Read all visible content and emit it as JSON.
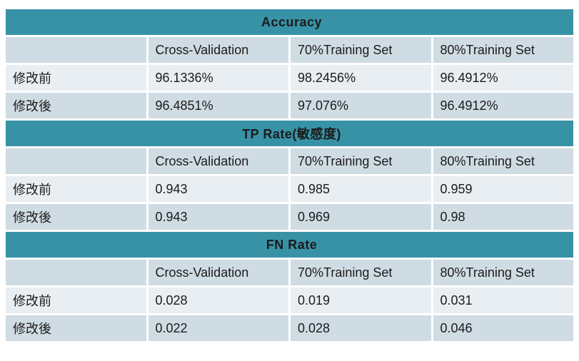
{
  "colors": {
    "accent_teal": "#3892a6",
    "row_shaded": "#d0dce3",
    "row_light": "#e9eef2",
    "title_text": "#ffffff",
    "body_text": "#1b1b1b",
    "background": "#ffffff"
  },
  "chart_data": [
    {
      "type": "table",
      "title": "Accuracy",
      "columns": [
        "",
        "Cross-Validation",
        "70%Training Set",
        "80%Training Set"
      ],
      "rows": [
        {
          "label": "修改前",
          "values": [
            "96.1336%",
            "98.2456%",
            "96.4912%"
          ]
        },
        {
          "label": "修改後",
          "values": [
            "96.4851%",
            "97.076%",
            "96.4912%"
          ]
        }
      ]
    },
    {
      "type": "table",
      "title": "TP Rate(敏感度)",
      "columns": [
        "",
        "Cross-Validation",
        "70%Training Set",
        "80%Training Set"
      ],
      "rows": [
        {
          "label": "修改前",
          "values": [
            "0.943",
            "0.985",
            "0.959"
          ]
        },
        {
          "label": "修改後",
          "values": [
            "0.943",
            "0.969",
            "0.98"
          ]
        }
      ]
    },
    {
      "type": "table",
      "title": "FN Rate",
      "columns": [
        "",
        "Cross-Validation",
        "70%Training Set",
        "80%Training Set"
      ],
      "rows": [
        {
          "label": "修改前",
          "values": [
            "0.028",
            "0.019",
            "0.031"
          ]
        },
        {
          "label": "修改後",
          "values": [
            "0.022",
            "0.028",
            "0.046"
          ]
        }
      ]
    }
  ]
}
